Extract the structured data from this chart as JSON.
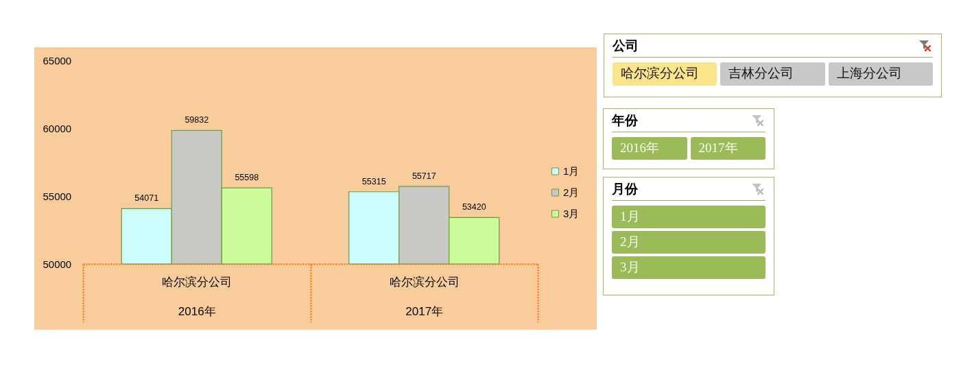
{
  "chart_data": [
    {
      "type": "bar",
      "categories": [
        "哈尔滨分公司\n2016年",
        "哈尔滨分公司\n2017年"
      ],
      "series": [
        {
          "name": "1月",
          "color": "#ccfcfc",
          "values": [
            54071,
            55315
          ]
        },
        {
          "name": "2月",
          "color": "#c8c9c5",
          "values": [
            59832,
            55717
          ]
        },
        {
          "name": "3月",
          "color": "#ccfc9a",
          "values": [
            55598,
            53420
          ]
        }
      ],
      "ylim": [
        50000,
        65000
      ],
      "yticks": [
        50000,
        55000,
        60000,
        65000
      ],
      "data_labels": true,
      "legend": "right"
    },
    {
      "type": "other",
      "title": "公司",
      "categories": [
        "哈尔滨分公司",
        "吉林分公司",
        "上海分公司"
      ],
      "colors": [
        "#fbe48a",
        "#c8c9c6",
        "#c8c9c6"
      ]
    },
    {
      "type": "other",
      "title": "年份",
      "categories": [
        "2016年",
        "2017年"
      ],
      "colors": [
        "#9bbb59",
        "#9bbb59"
      ]
    },
    {
      "type": "other",
      "title": "月份",
      "categories": [
        "1月",
        "2月",
        "3月"
      ],
      "colors": [
        "#9bbb59",
        "#9bbb59",
        "#9bbb59"
      ]
    }
  ]
}
